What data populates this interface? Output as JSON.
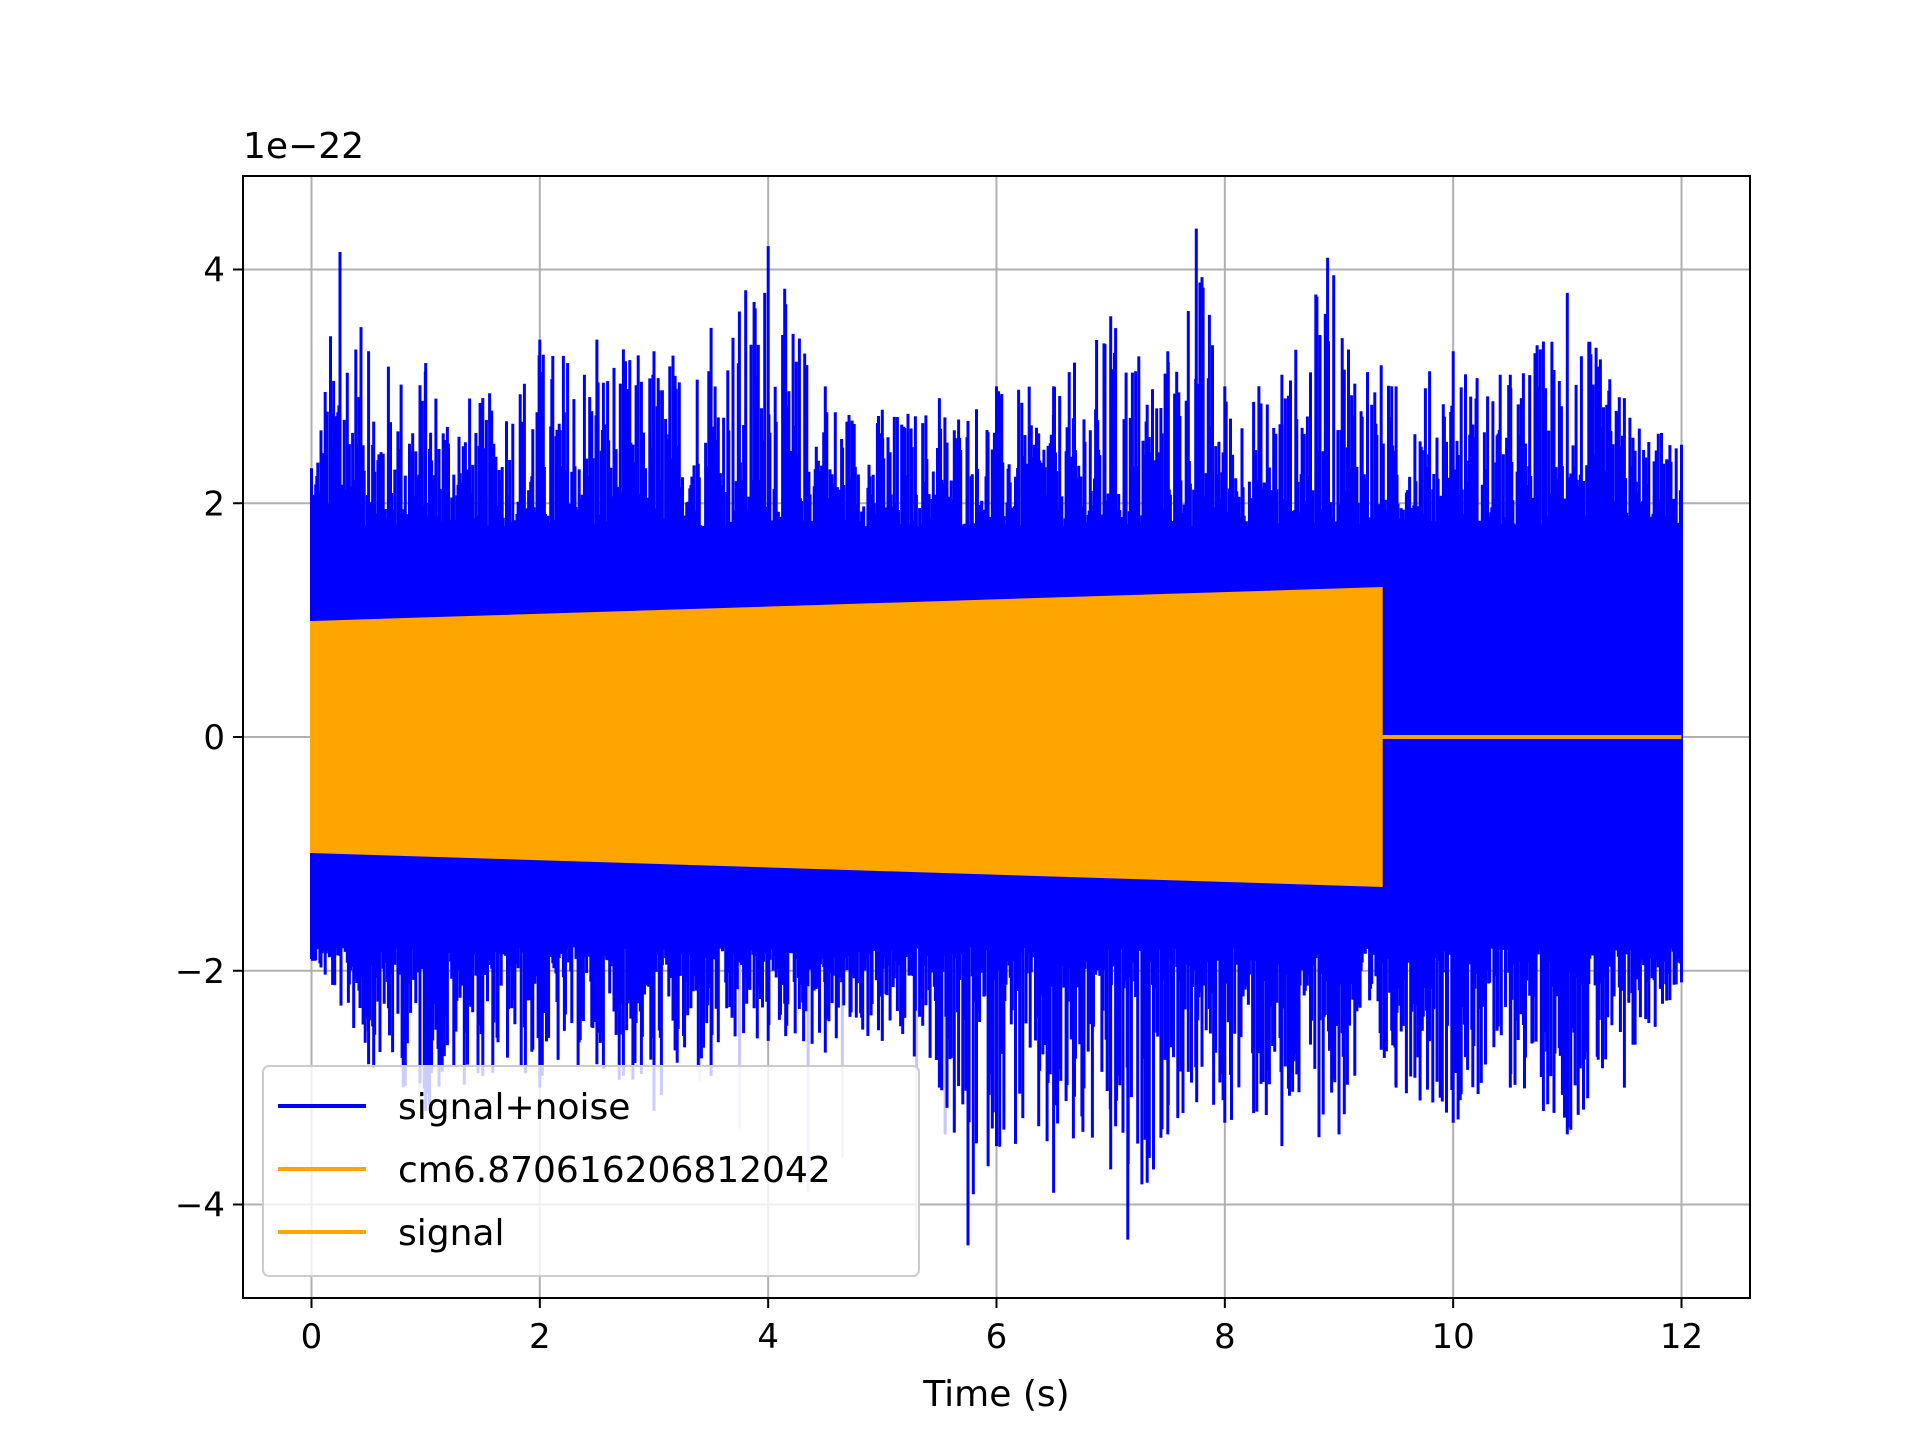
{
  "chart_data": {
    "type": "line",
    "title": "",
    "xlabel": "Time (s)",
    "ylabel": "",
    "y_offset_label": "1e−22",
    "xlim": [
      -0.6,
      12.6
    ],
    "ylim": [
      -4.8,
      4.8
    ],
    "xticks": [
      0,
      2,
      4,
      6,
      8,
      10,
      12
    ],
    "xtick_labels": [
      "0",
      "2",
      "4",
      "6",
      "8",
      "10",
      "12"
    ],
    "yticks": [
      -4,
      -2,
      0,
      2,
      4
    ],
    "ytick_labels": [
      "−4",
      "−2",
      "0",
      "2",
      "4"
    ],
    "grid": true,
    "legend_position": "lower-left",
    "series": [
      {
        "name": "signal+noise",
        "color": "#0000ff",
        "t_range": [
          0,
          12.0
        ],
        "envelope_upper": [
          [
            0,
            2.3
          ],
          [
            0.25,
            4.15
          ],
          [
            0.5,
            3.3
          ],
          [
            1.0,
            3.2
          ],
          [
            1.5,
            2.9
          ],
          [
            2.0,
            3.4
          ],
          [
            2.5,
            3.4
          ],
          [
            3.0,
            3.3
          ],
          [
            3.5,
            3.5
          ],
          [
            4.0,
            4.2
          ],
          [
            4.5,
            3.0
          ],
          [
            5.0,
            2.8
          ],
          [
            5.5,
            2.9
          ],
          [
            6.0,
            3.0
          ],
          [
            6.5,
            3.0
          ],
          [
            7.0,
            3.6
          ],
          [
            7.5,
            3.3
          ],
          [
            7.75,
            4.35
          ],
          [
            8.0,
            3.0
          ],
          [
            8.5,
            3.1
          ],
          [
            8.9,
            4.1
          ],
          [
            9.5,
            3.0
          ],
          [
            10.0,
            3.3
          ],
          [
            10.5,
            3.1
          ],
          [
            11.0,
            3.8
          ],
          [
            11.5,
            2.9
          ],
          [
            12.0,
            2.5
          ]
        ],
        "envelope_lower": [
          [
            0,
            -1.9
          ],
          [
            0.5,
            -2.8
          ],
          [
            1.0,
            -3.2
          ],
          [
            1.5,
            -2.9
          ],
          [
            2.0,
            -3.0
          ],
          [
            2.5,
            -2.8
          ],
          [
            3.0,
            -3.2
          ],
          [
            3.5,
            -2.9
          ],
          [
            4.0,
            -2.6
          ],
          [
            4.5,
            -2.7
          ],
          [
            5.0,
            -2.6
          ],
          [
            5.5,
            -3.0
          ],
          [
            5.75,
            -4.35
          ],
          [
            6.0,
            -3.5
          ],
          [
            6.5,
            -3.9
          ],
          [
            7.0,
            -3.7
          ],
          [
            7.15,
            -4.3
          ],
          [
            7.5,
            -3.4
          ],
          [
            8.0,
            -3.3
          ],
          [
            8.5,
            -3.5
          ],
          [
            9.0,
            -3.4
          ],
          [
            9.5,
            -3.0
          ],
          [
            10.0,
            -3.3
          ],
          [
            10.5,
            -3.0
          ],
          [
            11.0,
            -3.4
          ],
          [
            11.5,
            -3.0
          ],
          [
            12.0,
            -2.1
          ]
        ],
        "faint_dips": [
          [
            0.95,
            -3.1
          ],
          [
            3.4,
            -2.95
          ],
          [
            3.75,
            -3.35
          ],
          [
            4.35,
            -3.9
          ],
          [
            4.65,
            -3.6
          ],
          [
            5.3,
            -4.3
          ],
          [
            5.55,
            -3.4
          ]
        ]
      },
      {
        "name": "cm6.870616206812042",
        "color": "#ffa500",
        "t_range": [
          0,
          9.37
        ],
        "amplitude_start": 0.98,
        "amplitude_end": 1.27,
        "after_end_value": 0
      },
      {
        "name": "signal",
        "color": "#ffa500",
        "t_range": [
          0,
          12.0
        ],
        "amplitude_start": 0.98,
        "amplitude_end": 1.27,
        "zero_after": 9.37
      }
    ]
  }
}
